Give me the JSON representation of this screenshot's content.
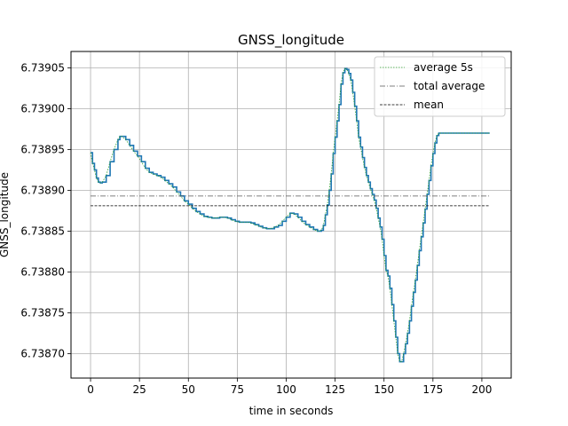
{
  "chart_data": {
    "type": "line",
    "title": "GNSS_longitude",
    "xlabel": "time in seconds",
    "ylabel": "GNSS_longitude",
    "xlim": [
      -10,
      215
    ],
    "ylim": [
      6.73867,
      6.73907
    ],
    "grid": true,
    "legend_position": "top-right",
    "x_ticks": [
      0,
      25,
      50,
      75,
      100,
      125,
      150,
      175,
      200
    ],
    "x_tick_labels": [
      "0",
      "25",
      "50",
      "75",
      "100",
      "125",
      "150",
      "175",
      "200"
    ],
    "y_ticks": [
      6.7387,
      6.73875,
      6.7388,
      6.73885,
      6.7389,
      6.73895,
      6.739,
      6.73905
    ],
    "y_tick_labels": [
      "6.73870",
      "6.73875",
      "6.73880",
      "6.73885",
      "6.73890",
      "6.73895",
      "6.73900",
      "6.73905"
    ],
    "series": [
      {
        "name": "GNSS_longitude",
        "color": "#1f77b4",
        "x": [
          0,
          1,
          2,
          3,
          4,
          5,
          6,
          8,
          10,
          12,
          14,
          15,
          16,
          18,
          20,
          22,
          24,
          26,
          28,
          30,
          32,
          34,
          36,
          38,
          40,
          42,
          44,
          46,
          48,
          50,
          52,
          54,
          56,
          58,
          60,
          62,
          64,
          66,
          68,
          70,
          72,
          74,
          76,
          78,
          80,
          82,
          84,
          86,
          88,
          90,
          92,
          94,
          96,
          98,
          100,
          102,
          104,
          106,
          108,
          110,
          112,
          114,
          116,
          118,
          119,
          120,
          121,
          122,
          123,
          124,
          125,
          126,
          127,
          128,
          129,
          130,
          131,
          132,
          133,
          134,
          135,
          136,
          137,
          138,
          139,
          140,
          141,
          142,
          143,
          144,
          145,
          146,
          147,
          148,
          149,
          150,
          151,
          152,
          153,
          154,
          155,
          156,
          157,
          158,
          159,
          160,
          161,
          162,
          163,
          164,
          165,
          166,
          167,
          168,
          169,
          170,
          171,
          172,
          173,
          174,
          175,
          176,
          177,
          178,
          179,
          180,
          181,
          182,
          183,
          184,
          185,
          186,
          187,
          188,
          189,
          190,
          192,
          194,
          196,
          198,
          200,
          202,
          204
        ],
        "values": [
          6.738946,
          6.738933,
          6.738925,
          6.738915,
          6.73891,
          6.738909,
          6.73891,
          6.738918,
          6.738935,
          6.73895,
          6.738962,
          6.738966,
          6.738966,
          6.738962,
          6.738955,
          6.738948,
          6.738942,
          6.738935,
          6.738927,
          6.738922,
          6.73892,
          6.738918,
          6.738916,
          6.738912,
          6.738908,
          6.738904,
          6.738898,
          6.738893,
          6.738887,
          6.738883,
          6.738878,
          6.738874,
          6.738871,
          6.738868,
          6.738867,
          6.738866,
          6.738866,
          6.738867,
          6.738867,
          6.738866,
          6.738864,
          6.738862,
          6.738861,
          6.738861,
          6.738861,
          6.73886,
          6.738858,
          6.738856,
          6.738854,
          6.738853,
          6.738853,
          6.738855,
          6.738857,
          6.738862,
          6.738867,
          6.738872,
          6.738871,
          6.738867,
          6.738862,
          6.738858,
          6.738855,
          6.738852,
          6.73885,
          6.738851,
          6.738857,
          6.73887,
          6.738882,
          6.7389,
          6.73892,
          6.738945,
          6.738965,
          6.738985,
          6.739005,
          6.73903,
          6.739044,
          6.739049,
          6.739048,
          6.739043,
          6.739035,
          6.73902,
          6.739003,
          6.738985,
          6.738965,
          6.738953,
          6.73894,
          6.738928,
          6.738918,
          6.73891,
          6.738902,
          6.738895,
          6.738888,
          6.738878,
          6.738866,
          6.738855,
          6.73884,
          6.73882,
          6.738802,
          6.738795,
          6.73878,
          6.73876,
          6.73874,
          6.73872,
          6.7387,
          6.73869,
          6.73869,
          6.7387,
          6.738712,
          6.738725,
          6.73874,
          6.738758,
          6.738775,
          6.73879,
          6.738808,
          6.738826,
          6.738843,
          6.73886,
          6.738877,
          6.738895,
          6.738912,
          6.73893,
          6.738945,
          6.738958,
          6.738967,
          6.73897,
          6.73897,
          6.73897,
          6.73897,
          6.73897,
          6.73897,
          6.73897,
          6.73897,
          6.73897,
          6.73897,
          6.73897,
          6.73897,
          6.73897,
          6.73897,
          6.73897,
          6.73897,
          6.73897,
          6.73897,
          6.73897,
          6.73897
        ]
      },
      {
        "name": "average 5s",
        "color": "#2ca02c",
        "style": "dotted",
        "x": [
          0,
          1,
          2,
          3,
          4,
          5,
          6,
          8,
          10,
          12,
          14,
          15,
          16,
          18,
          20,
          22,
          24,
          26,
          28,
          30,
          32,
          34,
          36,
          38,
          40,
          42,
          44,
          46,
          48,
          50,
          52,
          54,
          56,
          58,
          60,
          62,
          64,
          66,
          68,
          70,
          72,
          74,
          76,
          78,
          80,
          82,
          84,
          86,
          88,
          90,
          92,
          94,
          96,
          98,
          100,
          102,
          104,
          106,
          108,
          110,
          112,
          114,
          116,
          118,
          119,
          120,
          121,
          122,
          123,
          124,
          125,
          126,
          127,
          128,
          129,
          130,
          131,
          132,
          133,
          134,
          135,
          136,
          137,
          138,
          139,
          140,
          141,
          142,
          143,
          144,
          145,
          146,
          147,
          148,
          149,
          150,
          151,
          152,
          153,
          154,
          155,
          156,
          157,
          158,
          159,
          160,
          161,
          162,
          163,
          164,
          165,
          166,
          167,
          168,
          169,
          170,
          171,
          172,
          173,
          174,
          175,
          176,
          177,
          178,
          179,
          180,
          181,
          182,
          183,
          184,
          185,
          186,
          187,
          188,
          189,
          190,
          192,
          194,
          196,
          198,
          200,
          202,
          204
        ],
        "values": [
          6.738946,
          6.738933,
          6.738925,
          6.738915,
          6.73891,
          6.738909,
          6.73891,
          6.738918,
          6.738935,
          6.73895,
          6.738962,
          6.738966,
          6.738966,
          6.738962,
          6.738955,
          6.738948,
          6.738942,
          6.738935,
          6.738927,
          6.738922,
          6.73892,
          6.738918,
          6.738916,
          6.738912,
          6.738908,
          6.738904,
          6.738898,
          6.738893,
          6.738887,
          6.738883,
          6.738878,
          6.738874,
          6.738871,
          6.738868,
          6.738867,
          6.738866,
          6.738866,
          6.738867,
          6.738867,
          6.738866,
          6.738864,
          6.738862,
          6.738861,
          6.738861,
          6.738861,
          6.73886,
          6.738858,
          6.738856,
          6.738854,
          6.738853,
          6.738853,
          6.738855,
          6.738857,
          6.738862,
          6.738867,
          6.738872,
          6.738871,
          6.738867,
          6.738862,
          6.738858,
          6.738855,
          6.738852,
          6.73885,
          6.738851,
          6.738857,
          6.73887,
          6.738882,
          6.7389,
          6.73892,
          6.738945,
          6.738965,
          6.738985,
          6.739005,
          6.73903,
          6.739044,
          6.739049,
          6.739048,
          6.739043,
          6.739035,
          6.73902,
          6.739003,
          6.738985,
          6.738965,
          6.738953,
          6.73894,
          6.738928,
          6.738918,
          6.73891,
          6.738902,
          6.738895,
          6.738888,
          6.738878,
          6.738866,
          6.738855,
          6.73884,
          6.73882,
          6.738802,
          6.738795,
          6.73878,
          6.73876,
          6.73874,
          6.73872,
          6.7387,
          6.73869,
          6.73869,
          6.7387,
          6.738712,
          6.738725,
          6.73874,
          6.738758,
          6.738775,
          6.73879,
          6.738808,
          6.738826,
          6.738843,
          6.73886,
          6.738877,
          6.738895,
          6.738912,
          6.73893,
          6.738945,
          6.738958,
          6.738967,
          6.73897,
          6.73897,
          6.73897,
          6.73897,
          6.73897,
          6.73897,
          6.73897,
          6.73897,
          6.73897,
          6.73897,
          6.73897,
          6.73897,
          6.73897,
          6.73897,
          6.73897,
          6.73897,
          6.73897,
          6.73897,
          6.73897,
          6.73897
        ]
      },
      {
        "name": "total average",
        "color": "#555555",
        "style": "dashdot",
        "x": [
          0,
          204
        ],
        "values": [
          6.738893,
          6.738893
        ]
      },
      {
        "name": "mean",
        "color": "#000000",
        "style": "dashed",
        "x": [
          0,
          204
        ],
        "values": [
          6.738881,
          6.738881
        ]
      }
    ],
    "legend": [
      "average 5s",
      "total average",
      "mean"
    ]
  }
}
